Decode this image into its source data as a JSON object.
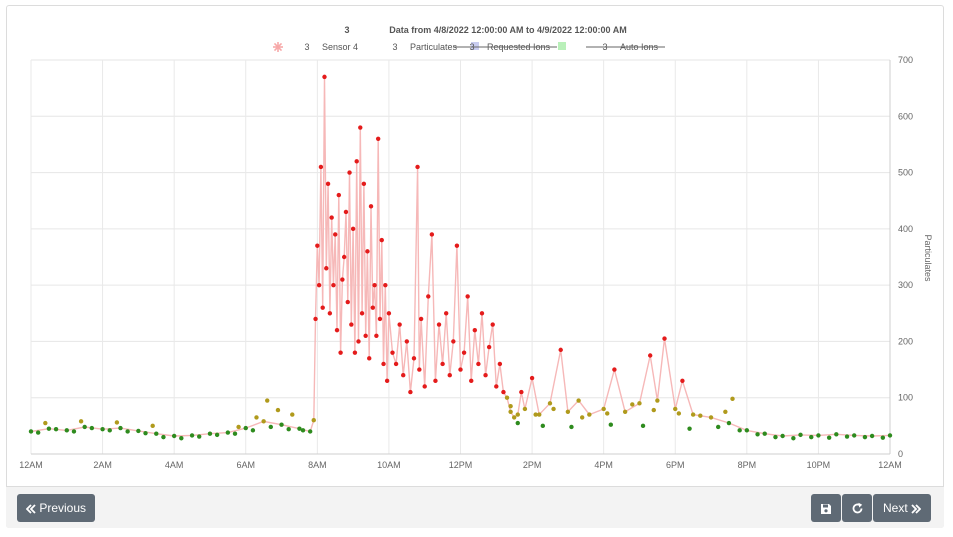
{
  "chart_data": {
    "type": "scatter",
    "title_number": "3",
    "title": "Data from 4/8/2022 12:00:00 AM to 4/9/2022 12:00:00 AM",
    "legend": [
      {
        "count": "3",
        "name": "Sensor 4",
        "marker": "asterisk",
        "color": "#f7a8a8",
        "strikethrough": false
      },
      {
        "count": "3",
        "name": "Particulates",
        "marker": "square",
        "color": "#c9cdf0",
        "strikethrough": false
      },
      {
        "count": "3",
        "name": "Requested Ions",
        "marker": "square",
        "color": "#b9f0b9",
        "strikethrough": true
      },
      {
        "count": "3",
        "name": "Auto Ions",
        "marker": "none",
        "color": "#666666",
        "strikethrough": true
      }
    ],
    "xlabel": "",
    "ylabel": "Particulates",
    "x_range_hours": [
      0,
      24
    ],
    "ylim": [
      0,
      700
    ],
    "x_tick_labels": [
      "12AM",
      "2AM",
      "4AM",
      "6AM",
      "8AM",
      "10AM",
      "12PM",
      "2PM",
      "4PM",
      "6PM",
      "8PM",
      "10PM",
      "12AM"
    ],
    "y_ticks": [
      0,
      100,
      200,
      300,
      400,
      500,
      600,
      700
    ],
    "grid": true,
    "legend_position": "top-center",
    "y_axis_side": "right",
    "line_color": "#f6b8b8",
    "level_colors": {
      "low": "#2e8b1e",
      "medium": "#b09a1c",
      "high": "#e41b1b"
    },
    "series": [
      {
        "name": "Sensor 4",
        "points": [
          [
            0.0,
            40
          ],
          [
            0.5,
            45
          ],
          [
            1.0,
            42
          ],
          [
            1.5,
            48
          ],
          [
            2.0,
            44
          ],
          [
            2.5,
            46
          ],
          [
            3.0,
            41
          ],
          [
            3.5,
            36
          ],
          [
            4.0,
            32
          ],
          [
            4.5,
            33
          ],
          [
            5.0,
            36
          ],
          [
            5.5,
            38
          ],
          [
            6.0,
            46
          ],
          [
            6.5,
            58
          ],
          [
            7.0,
            52
          ],
          [
            7.5,
            45
          ],
          [
            7.8,
            40
          ],
          [
            7.9,
            60
          ],
          [
            7.95,
            240
          ],
          [
            8.0,
            370
          ],
          [
            8.05,
            300
          ],
          [
            8.1,
            510
          ],
          [
            8.15,
            260
          ],
          [
            8.2,
            670
          ],
          [
            8.25,
            330
          ],
          [
            8.3,
            480
          ],
          [
            8.35,
            250
          ],
          [
            8.4,
            420
          ],
          [
            8.45,
            300
          ],
          [
            8.5,
            390
          ],
          [
            8.55,
            220
          ],
          [
            8.6,
            460
          ],
          [
            8.65,
            180
          ],
          [
            8.7,
            310
          ],
          [
            8.75,
            350
          ],
          [
            8.8,
            430
          ],
          [
            8.85,
            270
          ],
          [
            8.9,
            500
          ],
          [
            8.95,
            230
          ],
          [
            9.0,
            400
          ],
          [
            9.05,
            180
          ],
          [
            9.1,
            520
          ],
          [
            9.15,
            200
          ],
          [
            9.2,
            580
          ],
          [
            9.25,
            250
          ],
          [
            9.3,
            480
          ],
          [
            9.35,
            210
          ],
          [
            9.4,
            360
          ],
          [
            9.45,
            170
          ],
          [
            9.5,
            440
          ],
          [
            9.55,
            260
          ],
          [
            9.6,
            300
          ],
          [
            9.65,
            210
          ],
          [
            9.7,
            560
          ],
          [
            9.75,
            240
          ],
          [
            9.8,
            380
          ],
          [
            9.85,
            160
          ],
          [
            9.9,
            300
          ],
          [
            9.95,
            130
          ],
          [
            10.0,
            250
          ],
          [
            10.1,
            180
          ],
          [
            10.2,
            160
          ],
          [
            10.3,
            230
          ],
          [
            10.4,
            140
          ],
          [
            10.5,
            200
          ],
          [
            10.6,
            110
          ],
          [
            10.7,
            170
          ],
          [
            10.8,
            510
          ],
          [
            10.85,
            150
          ],
          [
            10.9,
            240
          ],
          [
            11.0,
            120
          ],
          [
            11.1,
            280
          ],
          [
            11.2,
            390
          ],
          [
            11.3,
            130
          ],
          [
            11.4,
            230
          ],
          [
            11.5,
            160
          ],
          [
            11.6,
            250
          ],
          [
            11.7,
            140
          ],
          [
            11.8,
            200
          ],
          [
            11.9,
            370
          ],
          [
            12.0,
            150
          ],
          [
            12.1,
            180
          ],
          [
            12.2,
            280
          ],
          [
            12.3,
            130
          ],
          [
            12.4,
            220
          ],
          [
            12.5,
            160
          ],
          [
            12.6,
            250
          ],
          [
            12.7,
            140
          ],
          [
            12.8,
            190
          ],
          [
            12.9,
            230
          ],
          [
            13.0,
            120
          ],
          [
            13.1,
            160
          ],
          [
            13.2,
            110
          ],
          [
            13.3,
            100
          ],
          [
            13.4,
            75
          ],
          [
            13.5,
            65
          ],
          [
            13.6,
            70
          ],
          [
            13.7,
            110
          ],
          [
            13.8,
            80
          ],
          [
            14.0,
            135
          ],
          [
            14.2,
            70
          ],
          [
            14.5,
            90
          ],
          [
            14.8,
            185
          ],
          [
            15.0,
            75
          ],
          [
            15.3,
            95
          ],
          [
            15.6,
            70
          ],
          [
            16.0,
            80
          ],
          [
            16.3,
            150
          ],
          [
            16.6,
            75
          ],
          [
            17.0,
            90
          ],
          [
            17.3,
            175
          ],
          [
            17.5,
            95
          ],
          [
            17.7,
            205
          ],
          [
            18.0,
            80
          ],
          [
            18.2,
            130
          ],
          [
            18.5,
            70
          ],
          [
            19.0,
            65
          ],
          [
            19.5,
            55
          ],
          [
            20.0,
            42
          ],
          [
            20.5,
            36
          ],
          [
            21.0,
            32
          ],
          [
            21.5,
            34
          ],
          [
            22.0,
            33
          ],
          [
            22.5,
            35
          ],
          [
            23.0,
            33
          ],
          [
            23.5,
            32
          ],
          [
            24.0,
            33
          ]
        ]
      }
    ],
    "scatter_sample_sets": {
      "low_band": [
        [
          0.2,
          38
        ],
        [
          0.7,
          44
        ],
        [
          1.2,
          40
        ],
        [
          1.7,
          46
        ],
        [
          2.2,
          42
        ],
        [
          2.7,
          40
        ],
        [
          3.2,
          37
        ],
        [
          3.7,
          30
        ],
        [
          4.2,
          28
        ],
        [
          4.7,
          31
        ],
        [
          5.2,
          34
        ],
        [
          5.7,
          36
        ],
        [
          6.2,
          42
        ],
        [
          6.7,
          48
        ],
        [
          7.2,
          44
        ],
        [
          7.6,
          42
        ],
        [
          13.6,
          55
        ],
        [
          14.3,
          50
        ],
        [
          15.1,
          48
        ],
        [
          16.2,
          52
        ],
        [
          17.1,
          50
        ],
        [
          18.4,
          45
        ],
        [
          19.2,
          48
        ],
        [
          19.8,
          42
        ],
        [
          20.3,
          35
        ],
        [
          20.8,
          30
        ],
        [
          21.3,
          28
        ],
        [
          21.8,
          30
        ],
        [
          22.3,
          29
        ],
        [
          22.8,
          31
        ],
        [
          23.3,
          30
        ],
        [
          23.8,
          29
        ]
      ],
      "medium_band": [
        [
          0.4,
          55
        ],
        [
          1.4,
          58
        ],
        [
          2.4,
          56
        ],
        [
          3.4,
          50
        ],
        [
          5.8,
          48
        ],
        [
          6.3,
          65
        ],
        [
          6.6,
          95
        ],
        [
          6.9,
          78
        ],
        [
          7.3,
          70
        ],
        [
          13.4,
          85
        ],
        [
          14.1,
          70
        ],
        [
          14.6,
          80
        ],
        [
          15.4,
          65
        ],
        [
          16.1,
          72
        ],
        [
          16.8,
          88
        ],
        [
          17.4,
          78
        ],
        [
          18.1,
          72
        ],
        [
          18.7,
          68
        ],
        [
          19.4,
          75
        ],
        [
          19.6,
          98
        ]
      ]
    }
  },
  "footer": {
    "previous_label": "Previous",
    "next_label": "Next",
    "save_icon": "save-icon",
    "refresh_icon": "refresh-icon"
  }
}
